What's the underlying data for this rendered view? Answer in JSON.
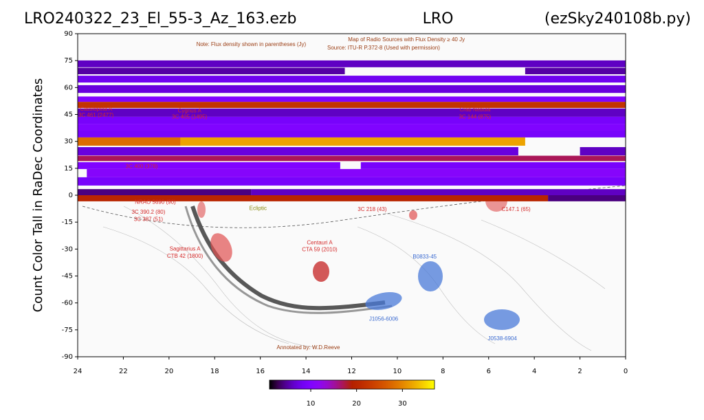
{
  "chart_data": {
    "type": "heatmap",
    "title_left": "LRO240322_23_El_55-3_Az_163.ezb",
    "title_center": "LRO",
    "title_right": "(ezSky240108b.py)",
    "ylabel": "Count Color Tall in RaDec Coordinates",
    "xlim": [
      24,
      0
    ],
    "xticks": [
      24,
      22,
      20,
      18,
      16,
      14,
      12,
      10,
      8,
      6,
      4,
      2,
      0
    ],
    "ylim": [
      -90,
      90
    ],
    "yticks": [
      -90,
      -75,
      -60,
      -45,
      -30,
      -15,
      0,
      15,
      30,
      45,
      60,
      75,
      90
    ],
    "colormap": "gnuplot",
    "clim": [
      1,
      37
    ],
    "cticks": [
      10,
      20,
      30
    ],
    "bands": [
      {
        "dec": [
          71.3,
          75.1
        ],
        "segments": [
          [
            24,
            0,
            6
          ]
        ]
      },
      {
        "dec": [
          67.4,
          71.0
        ],
        "segments": [
          [
            24,
            12.3,
            5
          ],
          [
            4.4,
            0,
            5
          ]
        ]
      },
      {
        "dec": [
          62.8,
          66.6
        ],
        "segments": [
          [
            24,
            0,
            8
          ]
        ]
      },
      {
        "dec": [
          57.0,
          61.3
        ],
        "segments": [
          [
            24,
            0,
            7
          ]
        ]
      },
      {
        "dec": [
          52.0,
          55.0
        ],
        "segments": [
          [
            24,
            0,
            10
          ]
        ]
      },
      {
        "dec": [
          48.6,
          52.0
        ],
        "segments": [
          [
            24,
            0,
            22
          ]
        ]
      },
      {
        "dec": [
          43.7,
          48.3
        ],
        "segments": [
          [
            24,
            0,
            6
          ]
        ]
      },
      {
        "dec": [
          39.8,
          43.7
        ],
        "segments": [
          [
            24,
            0,
            9
          ]
        ]
      },
      {
        "dec": [
          36.0,
          39.8
        ],
        "segments": [
          [
            24,
            0,
            10
          ]
        ]
      },
      {
        "dec": [
          32.2,
          36.0
        ],
        "segments": [
          [
            24,
            0,
            9
          ]
        ]
      },
      {
        "dec": [
          27.6,
          32.2
        ],
        "segments": [
          [
            24,
            19.5,
            28
          ],
          [
            19.5,
            4.4,
            32
          ]
        ]
      },
      {
        "dec": [
          22.2,
          26.8
        ],
        "segments": [
          [
            24,
            4.7,
            7
          ],
          [
            2,
            0,
            6
          ]
        ]
      },
      {
        "dec": [
          19.0,
          22.0
        ],
        "segments": [
          [
            24,
            0,
            17
          ]
        ]
      },
      {
        "dec": [
          14.6,
          18.4
        ],
        "segments": [
          [
            24,
            12.5,
            10
          ],
          [
            11.6,
            0,
            9
          ]
        ]
      },
      {
        "dec": [
          10.0,
          14.6
        ],
        "segments": [
          [
            23.6,
            0,
            11
          ]
        ]
      },
      {
        "dec": [
          5.4,
          10.0
        ],
        "segments": [
          [
            24,
            0,
            9
          ]
        ]
      },
      {
        "dec": [
          0.0,
          3.4
        ],
        "segments": [
          [
            24,
            16.4,
            4
          ],
          [
            16.4,
            0,
            6
          ]
        ]
      },
      {
        "dec": [
          -3.4,
          0.0
        ],
        "segments": [
          [
            24,
            3.4,
            20
          ],
          [
            3.4,
            0,
            4
          ]
        ]
      }
    ],
    "annotations": [
      {
        "text": "Note: Flux density shown in parentheses (Jy)",
        "ra": 16.4,
        "dec": 84,
        "color": "#9a3c12"
      },
      {
        "text": "Map of Radio Sources with Flux Density ≥ 40 Jy",
        "ra": 9.6,
        "dec": 86.5,
        "color": "#9a3c12"
      },
      {
        "text": "Source: ITU-R P.372-8 (Used with permission)",
        "ra": 10.6,
        "dec": 82,
        "color": "#9a3c12"
      },
      {
        "text": "Cassiopeia A",
        "ra": 23.2,
        "dec": 48,
        "color": "#d42a2a"
      },
      {
        "text": "3C 461 (2477)",
        "ra": 23.2,
        "dec": 44.5,
        "color": "#d42a2a"
      },
      {
        "text": "Cygnus A",
        "ra": 19.1,
        "dec": 47,
        "color": "#d42a2a"
      },
      {
        "text": "3C 405 (1495)",
        "ra": 19.1,
        "dec": 43.5,
        "color": "#d42a2a"
      },
      {
        "text": "Crab Nebula",
        "ra": 6.6,
        "dec": 47.5,
        "color": "#d42a2a"
      },
      {
        "text": "3C 144 (875)",
        "ra": 6.6,
        "dec": 43.5,
        "color": "#d42a2a"
      },
      {
        "text": "3C 400 (378)",
        "ra": 21.2,
        "dec": 16,
        "color": "#d42a2a"
      },
      {
        "text": "Ecliptic",
        "ra": 16.1,
        "dec": -7.5,
        "color": "#8a8a10"
      },
      {
        "text": "NRAO 5690 (90)",
        "ra": 20.6,
        "dec": -4,
        "color": "#d42a2a"
      },
      {
        "text": "3C 390.2 (80)",
        "ra": 20.9,
        "dec": -9.5,
        "color": "#d42a2a"
      },
      {
        "text": "3C 387  (51)",
        "ra": 20.9,
        "dec": -13.5,
        "color": "#d42a2a"
      },
      {
        "text": "Sagittarius A",
        "ra": 19.3,
        "dec": -30,
        "color": "#d42a2a"
      },
      {
        "text": "CTB 42 (1800)",
        "ra": 19.3,
        "dec": -34,
        "color": "#d42a2a"
      },
      {
        "text": "Centauri A",
        "ra": 13.4,
        "dec": -26.5,
        "color": "#d42a2a"
      },
      {
        "text": "CTA 59 (2010)",
        "ra": 13.4,
        "dec": -30.5,
        "color": "#d42a2a"
      },
      {
        "text": "3C 218 (43)",
        "ra": 11.1,
        "dec": -8,
        "color": "#d42a2a"
      },
      {
        "text": "C147.1 (65)",
        "ra": 4.8,
        "dec": -8,
        "color": "#d42a2a"
      },
      {
        "text": "B0833-45",
        "ra": 8.8,
        "dec": -34.5,
        "color": "#3a6ad0"
      },
      {
        "text": "J1056-6006",
        "ra": 10.6,
        "dec": -69,
        "color": "#3a6ad0"
      },
      {
        "text": "J0538-6904",
        "ra": 5.4,
        "dec": -80,
        "color": "#3a6ad0"
      },
      {
        "text": "Annotated by: W.D.Reeve",
        "ra": 13.9,
        "dec": -85,
        "color": "#9a3c12"
      }
    ]
  }
}
